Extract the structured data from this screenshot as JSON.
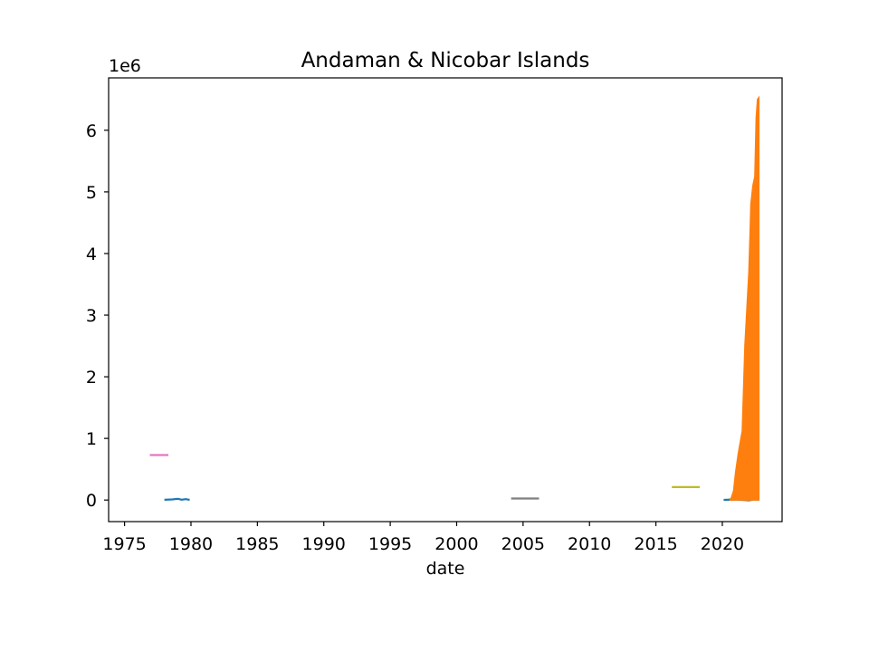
{
  "chart_data": {
    "type": "line",
    "title": "Andaman & Nicobar Islands",
    "xlabel": "date",
    "ylabel": "",
    "y_offset_label": "1e6",
    "x_axis_kind": "date (years)",
    "xlim": [
      1973.8,
      2024.5
    ],
    "ylim": [
      -350000,
      6850000
    ],
    "x_ticks": [
      1975,
      1980,
      1985,
      1990,
      1995,
      2000,
      2005,
      2010,
      2015,
      2020
    ],
    "y_ticks": [
      0,
      1000000,
      2000000,
      3000000,
      4000000,
      5000000,
      6000000
    ],
    "y_tick_labels": [
      "0",
      "1",
      "2",
      "3",
      "4",
      "5",
      "6"
    ],
    "grid": false,
    "legend": "none",
    "series": [
      {
        "color": "#e377c2",
        "x": [
          1976.9,
          1978.3
        ],
        "y": [
          730000,
          730000
        ]
      },
      {
        "color": "#1f77b4",
        "x": [
          1978.0,
          1978.6,
          1979.0,
          1979.3,
          1979.6,
          1979.9
        ],
        "y": [
          5000,
          10000,
          20000,
          5000,
          15000,
          3000
        ]
      },
      {
        "color": "#7f7f7f",
        "x": [
          2004.1,
          2006.2
        ],
        "y": [
          25000,
          25000
        ]
      },
      {
        "color": "#bcbd22",
        "x": [
          2016.2,
          2018.3
        ],
        "y": [
          210000,
          210000
        ]
      },
      {
        "color": "#1f77b4",
        "x": [
          2020.1,
          2021.0,
          2021.5,
          2022.0,
          2022.4,
          2022.7
        ],
        "y": [
          3000,
          8000,
          2000,
          -5000,
          10000,
          4000
        ]
      },
      {
        "color": "#2ca02c",
        "x": [
          2020.5,
          2021.0,
          2021.5,
          2021.8,
          2022.0,
          2022.3,
          2022.5,
          2022.7
        ],
        "y": [
          5000,
          30000,
          50000,
          80000,
          60000,
          90000,
          70000,
          110000
        ]
      },
      {
        "color": "#ff7f0e",
        "x": [
          2020.6,
          2020.7,
          2020.85,
          2021.0,
          2021.2,
          2021.4,
          2021.5,
          2021.6,
          2021.7,
          2021.85,
          2022.0,
          2022.1,
          2022.15,
          2022.3,
          2022.45,
          2022.55,
          2022.65,
          2022.75
        ],
        "y": [
          0,
          50000,
          150000,
          450000,
          750000,
          1000000,
          1120000,
          1800000,
          2500000,
          3100000,
          3700000,
          4400000,
          4800000,
          5100000,
          5250000,
          6200000,
          6500000,
          6530000
        ],
        "fill_to_zero": true
      }
    ]
  }
}
